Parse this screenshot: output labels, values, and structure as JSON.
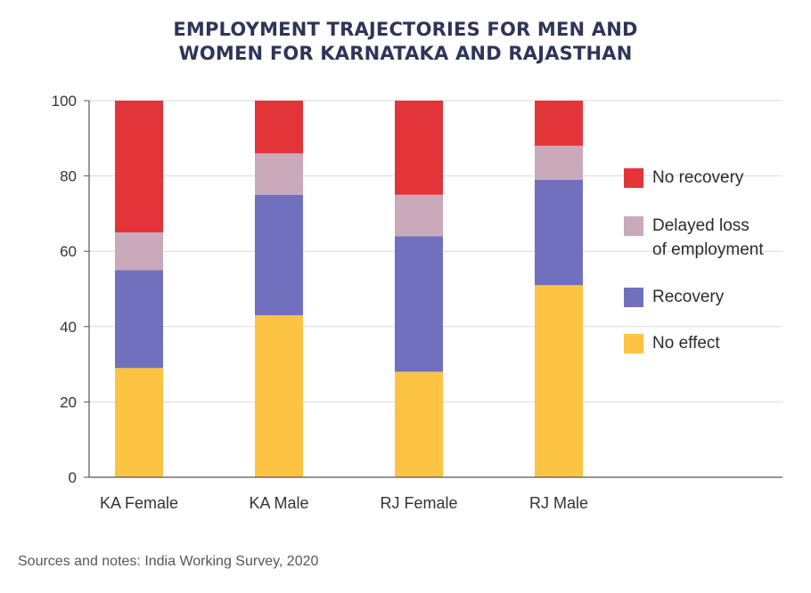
{
  "title_lines": [
    "EMPLOYMENT TRAJECTORIES FOR MEN AND",
    "WOMEN FOR KARNATAKA AND RAJASTHAN"
  ],
  "source": "Sources and notes: India Working Survey, 2020",
  "legend": [
    {
      "lines": [
        "No recovery"
      ],
      "color": "#e3343a"
    },
    {
      "lines": [
        "Delayed loss",
        "of employment"
      ],
      "color": "#c9a9ba"
    },
    {
      "lines": [
        "Recovery"
      ],
      "color": "#7170be"
    },
    {
      "lines": [
        "No effect"
      ],
      "color": "#fdc443"
    }
  ],
  "chart_data": {
    "type": "bar",
    "stacked": true,
    "categories": [
      "KA Female",
      "KA Male",
      "RJ Female",
      "RJ Male"
    ],
    "series": [
      {
        "name": "No effect",
        "color": "#fdc443",
        "values": [
          29,
          43,
          28,
          51
        ]
      },
      {
        "name": "Recovery",
        "color": "#7170be",
        "values": [
          26,
          32,
          36,
          28
        ]
      },
      {
        "name": "Delayed loss of employment",
        "color": "#c9a9ba",
        "values": [
          10,
          11,
          11,
          9
        ]
      },
      {
        "name": "No recovery",
        "color": "#e3343a",
        "values": [
          35,
          14,
          25,
          12
        ]
      }
    ],
    "ylim": [
      0,
      100
    ],
    "yticks": [
      0,
      20,
      40,
      60,
      80,
      100
    ],
    "grid": true,
    "legend_position": "right"
  }
}
